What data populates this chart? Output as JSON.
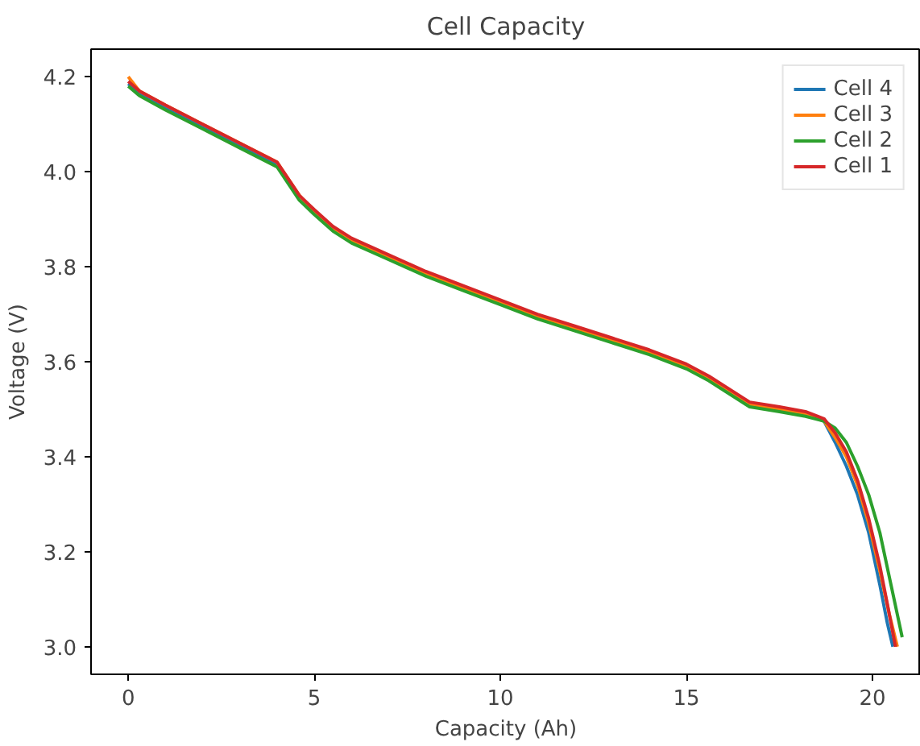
{
  "chart_data": {
    "type": "line",
    "title": "Cell Capacity",
    "xlabel": "Capacity (Ah)",
    "ylabel": "Voltage (V)",
    "xlim": [
      -1,
      21.3
    ],
    "ylim": [
      2.942,
      4.258
    ],
    "xticks": [
      0,
      5,
      10,
      15,
      20
    ],
    "yticks": [
      {
        "value": 3.0,
        "label": "3.0"
      },
      {
        "value": 3.2,
        "label": "3.2"
      },
      {
        "value": 3.4,
        "label": "3.4"
      },
      {
        "value": 3.6,
        "label": "3.6"
      },
      {
        "value": 3.8,
        "label": "3.8"
      },
      {
        "value": 4.0,
        "label": "4.0"
      },
      {
        "value": 4.2,
        "label": "4.2"
      }
    ],
    "legend": "top right",
    "grid": false,
    "series": [
      {
        "name": "Cell 4",
        "color": "#1f77b4",
        "x": [
          0,
          0.3,
          1,
          2,
          3,
          4,
          4.6,
          5,
          5.5,
          6,
          7,
          8,
          9,
          10,
          11,
          12,
          13,
          14,
          15,
          15.6,
          16.2,
          16.7,
          17.5,
          18.2,
          18.7,
          19,
          19.3,
          19.6,
          19.9,
          20.2,
          20.4,
          20.55
        ],
        "values": [
          4.185,
          4.165,
          4.135,
          4.095,
          4.055,
          4.015,
          null,
          null,
          null,
          null,
          null,
          null,
          null,
          null,
          null,
          null,
          null,
          null,
          null,
          null,
          null,
          null,
          null,
          null,
          3.475,
          3.43,
          3.38,
          3.32,
          3.24,
          3.13,
          3.05,
          3.0
        ]
      },
      {
        "name": "Cell 3",
        "color": "#ff7f0e",
        "x": [
          0,
          0.3,
          1,
          2,
          3,
          4,
          4.6,
          5,
          5.5,
          6,
          7,
          8,
          9,
          10,
          11,
          12,
          13,
          14,
          15,
          15.6,
          16.2,
          16.7,
          17.5,
          18.2,
          18.7,
          19,
          19.3,
          19.6,
          19.9,
          20.2,
          20.45,
          20.67
        ],
        "values": [
          4.2,
          4.17,
          4.14,
          4.1,
          4.06,
          4.02,
          3.95,
          3.915,
          3.88,
          3.855,
          3.82,
          3.785,
          3.755,
          3.725,
          3.695,
          3.67,
          3.645,
          3.62,
          3.59,
          3.565,
          3.535,
          3.51,
          3.5,
          3.49,
          3.475,
          3.44,
          3.4,
          3.34,
          3.26,
          3.16,
          3.07,
          3.0
        ]
      },
      {
        "name": "Cell 2",
        "color": "#2ca02c",
        "x": [
          0,
          0.3,
          1,
          2,
          3,
          4,
          4.6,
          5,
          5.5,
          6,
          7,
          8,
          9,
          10,
          11,
          12,
          13,
          14,
          15,
          15.6,
          16.2,
          16.7,
          17.5,
          18.2,
          18.7,
          19,
          19.3,
          19.6,
          19.9,
          20.2,
          20.5,
          20.8
        ],
        "values": [
          4.18,
          4.16,
          4.13,
          4.09,
          4.05,
          4.01,
          3.94,
          3.91,
          3.875,
          3.85,
          3.815,
          3.78,
          3.75,
          3.72,
          3.69,
          3.665,
          3.64,
          3.615,
          3.585,
          3.56,
          3.53,
          3.505,
          3.495,
          3.485,
          3.475,
          3.46,
          3.43,
          3.38,
          3.32,
          3.24,
          3.13,
          3.02
        ]
      },
      {
        "name": "Cell 1",
        "color": "#d62728",
        "x": [
          0,
          0.3,
          1,
          2,
          3,
          4,
          4.6,
          5,
          5.5,
          6,
          7,
          8,
          9,
          10,
          11,
          12,
          13,
          14,
          15,
          15.6,
          16.2,
          16.7,
          17.5,
          18.2,
          18.7,
          19,
          19.3,
          19.6,
          19.9,
          20.2,
          20.4,
          20.62
        ],
        "values": [
          4.19,
          4.17,
          4.14,
          4.1,
          4.06,
          4.02,
          3.95,
          3.92,
          3.885,
          3.86,
          3.825,
          3.79,
          3.76,
          3.73,
          3.7,
          3.675,
          3.65,
          3.625,
          3.595,
          3.57,
          3.54,
          3.515,
          3.505,
          3.495,
          3.48,
          3.45,
          3.41,
          3.35,
          3.27,
          3.17,
          3.09,
          3.0
        ]
      }
    ]
  }
}
